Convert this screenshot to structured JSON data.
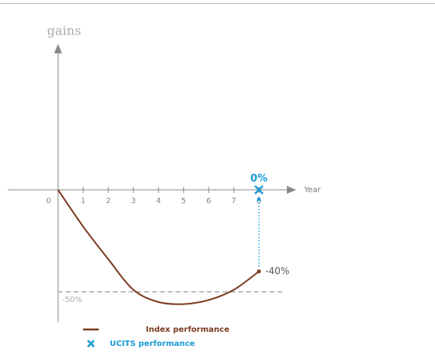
{
  "chart_data": {
    "type": "line",
    "ylabel": "gains",
    "xlabel": "Year",
    "xlim": [
      -2,
      9.3
    ],
    "ylim": [
      -65,
      70
    ],
    "xticks": [
      0,
      1,
      2,
      3,
      4,
      5,
      6,
      7,
      8
    ],
    "reference_lines": [
      {
        "value": -50,
        "label": "-50%"
      }
    ],
    "series": [
      {
        "name": "Index performance",
        "color": "#7b3a1e",
        "x": [
          0,
          1,
          2,
          3,
          4,
          5,
          6,
          7,
          8
        ],
        "values": [
          0,
          -18,
          -34,
          -49,
          -55,
          -56,
          -54,
          -49,
          -40
        ],
        "value_labels": [
          null,
          null,
          null,
          null,
          null,
          null,
          null,
          null,
          "-40%"
        ]
      },
      {
        "name": "UCITS performance",
        "color": "#1a9ad6",
        "x": [
          8
        ],
        "values": [
          0
        ],
        "value_labels": [
          "0%"
        ]
      }
    ]
  }
}
